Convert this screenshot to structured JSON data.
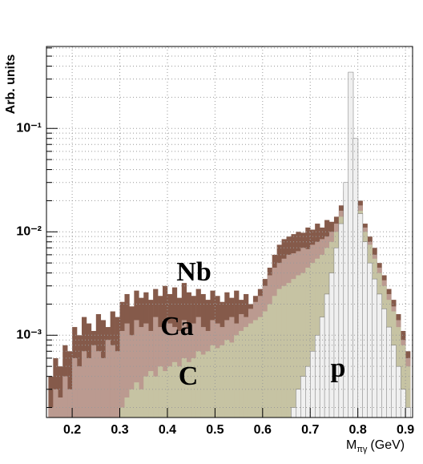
{
  "chart_data": {
    "type": "histogram",
    "y_label": "Arb. units",
    "x_label": {
      "main": "M",
      "sub": "πγ",
      "unit": "(GeV)"
    },
    "log_y": true,
    "grid": true,
    "xlim": [
      0.146,
      0.915
    ],
    "ylim": [
      0.00016,
      0.62
    ],
    "xticks": [
      0.2,
      0.3,
      0.4,
      0.5,
      0.6,
      0.7,
      0.8,
      0.9
    ],
    "yticks": [
      {
        "value": 0.001,
        "label": "10⁻³"
      },
      {
        "value": 0.01,
        "label": "10⁻²"
      },
      {
        "value": 0.1,
        "label": "10⁻¹"
      }
    ],
    "yminor": [
      0.0002,
      0.0003,
      0.0004,
      0.0005,
      0.0006,
      0.0007,
      0.0008,
      0.0009,
      0.002,
      0.003,
      0.004,
      0.005,
      0.006,
      0.007,
      0.008,
      0.009,
      0.02,
      0.03,
      0.04,
      0.05,
      0.06,
      0.07,
      0.08,
      0.09,
      0.2,
      0.3,
      0.4,
      0.5,
      0.6
    ],
    "bins": [
      0.15,
      0.16,
      0.17,
      0.18,
      0.19,
      0.2,
      0.21,
      0.22,
      0.23,
      0.24,
      0.25,
      0.26,
      0.27,
      0.28,
      0.29,
      0.3,
      0.31,
      0.32,
      0.33,
      0.34,
      0.35,
      0.36,
      0.37,
      0.38,
      0.39,
      0.4,
      0.41,
      0.42,
      0.43,
      0.44,
      0.45,
      0.46,
      0.47,
      0.48,
      0.49,
      0.5,
      0.51,
      0.52,
      0.53,
      0.54,
      0.55,
      0.56,
      0.57,
      0.58,
      0.59,
      0.6,
      0.61,
      0.62,
      0.63,
      0.64,
      0.65,
      0.66,
      0.67,
      0.68,
      0.69,
      0.7,
      0.71,
      0.72,
      0.73,
      0.74,
      0.75,
      0.76,
      0.77,
      0.78,
      0.79,
      0.8,
      0.81,
      0.82,
      0.83,
      0.84,
      0.85,
      0.86,
      0.87,
      0.88,
      0.89,
      0.9,
      0.91
    ],
    "series": [
      {
        "name": "Nb",
        "color": "#855a4a",
        "values": [
          0.0004,
          0.0006,
          0.0005,
          0.0008,
          0.0007,
          0.0012,
          0.001,
          0.0015,
          0.0013,
          0.0011,
          0.0016,
          0.0014,
          0.0012,
          0.0017,
          0.0015,
          0.0021,
          0.0025,
          0.0019,
          0.0027,
          0.0023,
          0.0026,
          0.0022,
          0.0028,
          0.0024,
          0.003,
          0.0025,
          0.0029,
          0.0023,
          0.0032,
          0.0026,
          0.0024,
          0.0028,
          0.0025,
          0.0022,
          0.0027,
          0.0024,
          0.0021,
          0.0026,
          0.0023,
          0.0027,
          0.0022,
          0.0025,
          0.002,
          0.0024,
          0.0028,
          0.0035,
          0.0045,
          0.006,
          0.0075,
          0.0085,
          0.009,
          0.0095,
          0.01,
          0.0098,
          0.011,
          0.0105,
          0.012,
          0.011,
          0.013,
          0.0125,
          0.014,
          0.018,
          0.025,
          0.06,
          0.05,
          0.02,
          0.012,
          0.009,
          0.007,
          0.005,
          0.0038,
          0.0028,
          0.0022,
          0.0016,
          0.0011,
          0.0007
        ]
      },
      {
        "name": "Ca",
        "color": "#bb9a90",
        "values": [
          0.0002,
          0.0003,
          0.00025,
          0.0004,
          0.0003,
          0.0006,
          0.0005,
          0.0007,
          0.0006,
          0.0008,
          0.0007,
          0.0006,
          0.0009,
          0.0008,
          0.0007,
          0.0011,
          0.0013,
          0.001,
          0.0014,
          0.0012,
          0.0013,
          0.0011,
          0.0015,
          0.0012,
          0.0014,
          0.0013,
          0.0012,
          0.0011,
          0.0014,
          0.0012,
          0.0013,
          0.0015,
          0.0012,
          0.0011,
          0.0014,
          0.0013,
          0.0012,
          0.0014,
          0.0015,
          0.0013,
          0.0016,
          0.0015,
          0.0018,
          0.0021,
          0.0024,
          0.003,
          0.0038,
          0.0045,
          0.005,
          0.0055,
          0.006,
          0.0062,
          0.0065,
          0.007,
          0.0068,
          0.0075,
          0.008,
          0.0085,
          0.009,
          0.01,
          0.012,
          0.016,
          0.024,
          0.055,
          0.045,
          0.018,
          0.011,
          0.008,
          0.006,
          0.0045,
          0.0034,
          0.0025,
          0.0019,
          0.0014,
          0.0009,
          0.0006
        ]
      },
      {
        "name": "C",
        "color": "#c6c3a3",
        "values": [
          null,
          null,
          null,
          null,
          null,
          null,
          null,
          null,
          null,
          null,
          null,
          null,
          null,
          null,
          null,
          0.0002,
          0.00025,
          0.0003,
          0.00035,
          0.0003,
          0.0004,
          0.00045,
          0.0004,
          0.0005,
          0.00045,
          0.0005,
          0.00055,
          0.0005,
          0.0006,
          0.00055,
          0.0006,
          0.0007,
          0.00065,
          0.0007,
          0.0008,
          0.00075,
          0.0008,
          0.0009,
          0.00085,
          0.001,
          0.0011,
          0.0012,
          0.0013,
          0.0014,
          0.0015,
          0.0017,
          0.002,
          0.0024,
          0.0028,
          0.003,
          0.0032,
          0.0035,
          0.0038,
          0.004,
          0.0045,
          0.005,
          0.0055,
          0.006,
          0.007,
          0.008,
          0.01,
          0.014,
          0.022,
          0.05,
          0.04,
          0.016,
          0.01,
          0.0075,
          0.0055,
          0.004,
          0.003,
          0.0022,
          0.0017,
          0.0012,
          0.0008,
          0.0005
        ]
      },
      {
        "name": "p",
        "color": "#f0f0f0",
        "values": [
          null,
          null,
          null,
          null,
          null,
          null,
          null,
          null,
          null,
          null,
          null,
          null,
          null,
          null,
          null,
          null,
          null,
          null,
          null,
          null,
          null,
          null,
          null,
          null,
          null,
          null,
          null,
          null,
          null,
          null,
          null,
          null,
          null,
          null,
          null,
          null,
          null,
          null,
          null,
          null,
          null,
          null,
          null,
          null,
          null,
          null,
          null,
          null,
          null,
          null,
          0.00016,
          0.0002,
          0.0003,
          0.0004,
          0.0005,
          0.0007,
          0.001,
          0.0015,
          0.0025,
          0.004,
          0.007,
          0.012,
          0.03,
          0.35,
          0.08,
          0.015,
          0.008,
          0.005,
          0.0035,
          0.0025,
          0.0018,
          0.0012,
          0.0008,
          0.0005,
          0.0003,
          0.0002
        ]
      }
    ]
  }
}
